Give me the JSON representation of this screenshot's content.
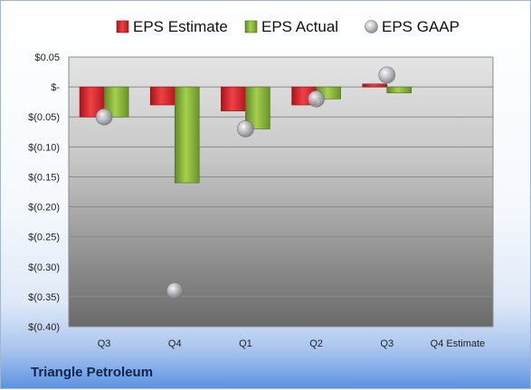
{
  "company": "Triangle Petroleum",
  "chart_data": {
    "type": "bar",
    "categories": [
      "Q3",
      "Q4",
      "Q1",
      "Q2",
      "Q3",
      "Q4 Estimate"
    ],
    "series": [
      {
        "name": "EPS Estimate",
        "values": [
          -0.05,
          -0.03,
          -0.04,
          -0.03,
          0.005,
          null
        ],
        "color": "#e0252b"
      },
      {
        "name": "EPS Actual",
        "values": [
          -0.05,
          -0.16,
          -0.07,
          -0.02,
          -0.01,
          null
        ],
        "color": "#8bbd33"
      },
      {
        "name": "EPS GAAP",
        "values": [
          -0.05,
          -0.34,
          -0.07,
          -0.02,
          0.02,
          null
        ],
        "color": "#b8bcc2",
        "style": "marker"
      }
    ],
    "y_ticks": [
      {
        "value": 0.05,
        "label": "$0.05"
      },
      {
        "value": 0,
        "label": "$-"
      },
      {
        "value": -0.05,
        "label": "$(0.05)"
      },
      {
        "value": -0.1,
        "label": "$(0.10)"
      },
      {
        "value": -0.15,
        "label": "$(0.15)"
      },
      {
        "value": -0.2,
        "label": "$(0.20)"
      },
      {
        "value": -0.25,
        "label": "$(0.25)"
      },
      {
        "value": -0.3,
        "label": "$(0.30)"
      },
      {
        "value": -0.35,
        "label": "$(0.35)"
      },
      {
        "value": -0.4,
        "label": "$(0.40)"
      }
    ],
    "ylim": [
      -0.4,
      0.05
    ],
    "grid": true,
    "legend": "top"
  }
}
